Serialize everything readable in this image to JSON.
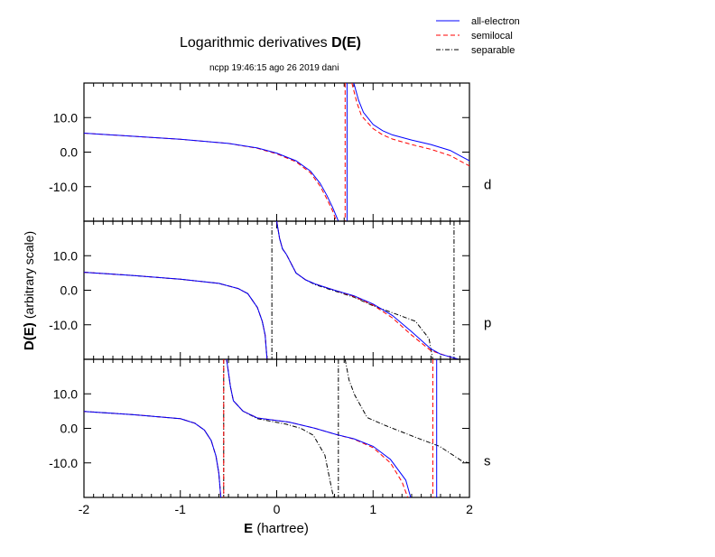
{
  "chart_data": {
    "type": "line",
    "title": "Logarithmic derivatives",
    "title_bold": "D(E)",
    "subtitle": "ncpp 19:46:15 ago 26 2019 dani",
    "xlabel_bold": "E",
    "xlabel": "(hartree)",
    "ylabel_bold": "D(E)",
    "ylabel": "(arbitrary scale)",
    "xlim": [
      -2,
      2
    ],
    "ylim": [
      -20,
      20
    ],
    "x_ticks": [
      "-2",
      "-1",
      "0",
      "1",
      "2"
    ],
    "y_ticks": [
      "10.0",
      "0.0",
      "-10.0"
    ],
    "legend": {
      "placement": "top-right",
      "entries": [
        {
          "key": "ae",
          "label": "all-electron",
          "color": "#0000ff",
          "style": "solid"
        },
        {
          "key": "sl",
          "label": "semilocal",
          "color": "#ff0000",
          "style": "dashed"
        },
        {
          "key": "sep",
          "label": "separable",
          "color": "#000000",
          "style": "dashdot"
        }
      ]
    },
    "panels": [
      {
        "label": "d",
        "series": {
          "ae": {
            "branches": [
              [
                [
                  -2,
                  5.5
                ],
                [
                  -1.5,
                  4.6
                ],
                [
                  -1,
                  3.7
                ],
                [
                  -0.5,
                  2.5
                ],
                [
                  -0.2,
                  1.2
                ],
                [
                  0,
                  -0.3
                ],
                [
                  0.2,
                  -2.5
                ],
                [
                  0.35,
                  -5.5
                ],
                [
                  0.45,
                  -9
                ],
                [
                  0.52,
                  -12.5
                ],
                [
                  0.58,
                  -16
                ],
                [
                  0.64,
                  -20
                ]
              ],
              [
                [
                  0.8,
                  20
                ],
                [
                  0.85,
                  15
                ],
                [
                  0.9,
                  11.5
                ],
                [
                  1.0,
                  8
                ],
                [
                  1.1,
                  6.2
                ],
                [
                  1.2,
                  5
                ],
                [
                  1.4,
                  3.5
                ],
                [
                  1.6,
                  2.2
                ],
                [
                  1.8,
                  0.5
                ],
                [
                  2.0,
                  -2.5
                ]
              ]
            ],
            "asymptotes": [
              0.73
            ]
          },
          "sl": {
            "branches": [
              [
                [
                  -2,
                  5.5
                ],
                [
                  -1.5,
                  4.6
                ],
                [
                  -1,
                  3.7
                ],
                [
                  -0.5,
                  2.5
                ],
                [
                  -0.2,
                  1.1
                ],
                [
                  0,
                  -0.5
                ],
                [
                  0.2,
                  -2.8
                ],
                [
                  0.35,
                  -6
                ],
                [
                  0.45,
                  -9.8
                ],
                [
                  0.52,
                  -13.5
                ],
                [
                  0.58,
                  -17
                ],
                [
                  0.62,
                  -20
                ]
              ],
              [
                [
                  0.78,
                  20
                ],
                [
                  0.83,
                  14.5
                ],
                [
                  0.88,
                  10.5
                ],
                [
                  1.0,
                  6.8
                ],
                [
                  1.1,
                  5
                ],
                [
                  1.2,
                  3.8
                ],
                [
                  1.4,
                  2.2
                ],
                [
                  1.6,
                  0.8
                ],
                [
                  1.8,
                  -1
                ],
                [
                  2.0,
                  -4
                ]
              ]
            ],
            "asymptotes": [
              0.71
            ]
          }
        }
      },
      {
        "label": "p",
        "series": {
          "ae": {
            "branches": [
              [
                [
                  -2,
                  5.2
                ],
                [
                  -1.5,
                  4.3
                ],
                [
                  -1,
                  3.2
                ],
                [
                  -0.6,
                  2
                ],
                [
                  -0.4,
                  0.5
                ],
                [
                  -0.3,
                  -1
                ],
                [
                  -0.2,
                  -5
                ],
                [
                  -0.15,
                  -9
                ],
                [
                  -0.12,
                  -13
                ],
                [
                  -0.1,
                  -20
                ]
              ],
              [
                [
                  0.0,
                  20
                ],
                [
                  0.03,
                  15
                ],
                [
                  0.06,
                  12
                ],
                [
                  0.1,
                  10.4
                ],
                [
                  0.2,
                  5
                ],
                [
                  0.3,
                  3
                ],
                [
                  0.4,
                  1.8
                ],
                [
                  0.6,
                  0
                ],
                [
                  0.8,
                  -1.6
                ],
                [
                  1.0,
                  -4
                ],
                [
                  1.2,
                  -7.3
                ],
                [
                  1.4,
                  -12
                ],
                [
                  1.6,
                  -17
                ],
                [
                  1.7,
                  -18.5
                ],
                [
                  1.89,
                  -20
                ]
              ]
            ],
            "asymptotes": []
          },
          "sl": {
            "branches": [
              [
                [
                  -2,
                  5.2
                ],
                [
                  -1.5,
                  4.3
                ],
                [
                  -1,
                  3.2
                ],
                [
                  -0.6,
                  2
                ],
                [
                  -0.4,
                  0.5
                ],
                [
                  -0.3,
                  -1
                ],
                [
                  -0.2,
                  -5
                ],
                [
                  -0.15,
                  -9
                ],
                [
                  -0.12,
                  -13
                ],
                [
                  -0.1,
                  -20
                ]
              ],
              [
                [
                  0.0,
                  20
                ],
                [
                  0.03,
                  15
                ],
                [
                  0.06,
                  12
                ],
                [
                  0.1,
                  10.4
                ],
                [
                  0.2,
                  5
                ],
                [
                  0.3,
                  3
                ],
                [
                  0.4,
                  1.8
                ],
                [
                  0.6,
                  0
                ],
                [
                  0.8,
                  -1.8
                ],
                [
                  1.0,
                  -4.3
                ],
                [
                  1.2,
                  -8
                ],
                [
                  1.4,
                  -13
                ],
                [
                  1.6,
                  -17.5
                ],
                [
                  1.87,
                  -20
                ]
              ]
            ],
            "asymptotes": []
          },
          "sep": {
            "branches": [
              [
                [
                  -2,
                  5.2
                ],
                [
                  -1.5,
                  4.3
                ],
                [
                  -1,
                  3.2
                ],
                [
                  -0.6,
                  2
                ],
                [
                  -0.4,
                  0.5
                ],
                [
                  -0.3,
                  -1
                ],
                [
                  -0.2,
                  -5
                ],
                [
                  -0.15,
                  -9
                ],
                [
                  -0.12,
                  -13
                ],
                [
                  -0.1,
                  -20
                ]
              ],
              [
                [
                  0.0,
                  20
                ],
                [
                  0.03,
                  15
                ],
                [
                  0.06,
                  12
                ],
                [
                  0.1,
                  10.4
                ],
                [
                  0.2,
                  5
                ],
                [
                  0.3,
                  3
                ],
                [
                  0.4,
                  1.6
                ],
                [
                  0.6,
                  -0.2
                ],
                [
                  0.8,
                  -2
                ],
                [
                  1.0,
                  -4.5
                ],
                [
                  1.2,
                  -6.5
                ],
                [
                  1.44,
                  -9
                ],
                [
                  1.58,
                  -14
                ],
                [
                  1.62,
                  -20
                ]
              ]
            ],
            "asymptotes": [
              -0.05,
              1.84
            ]
          }
        }
      },
      {
        "label": "s",
        "series": {
          "ae": {
            "branches": [
              [
                [
                  -2,
                  4.9
                ],
                [
                  -1.5,
                  4
                ],
                [
                  -1,
                  2.8
                ],
                [
                  -0.85,
                  1.5
                ],
                [
                  -0.75,
                  -0.5
                ],
                [
                  -0.68,
                  -3.5
                ],
                [
                  -0.63,
                  -8
                ],
                [
                  -0.6,
                  -13
                ],
                [
                  -0.58,
                  -20
                ]
              ],
              [
                [
                  -0.52,
                  20
                ],
                [
                  -0.48,
                  12
                ],
                [
                  -0.45,
                  8
                ],
                [
                  -0.35,
                  5
                ],
                [
                  -0.2,
                  3
                ],
                [
                  0.13,
                  1.8
                ],
                [
                  0.4,
                  0
                ],
                [
                  0.62,
                  -1.8
                ],
                [
                  0.8,
                  -3
                ],
                [
                  1.0,
                  -5.2
                ],
                [
                  1.18,
                  -9
                ],
                [
                  1.34,
                  -15
                ],
                [
                  1.39,
                  -20
                ]
              ]
            ],
            "asymptotes": [
              1.66
            ]
          },
          "sl": {
            "branches": [
              [
                [
                  -2,
                  4.9
                ],
                [
                  -1.5,
                  4
                ],
                [
                  -1,
                  2.8
                ],
                [
                  -0.85,
                  1.5
                ],
                [
                  -0.75,
                  -0.5
                ],
                [
                  -0.68,
                  -3.5
                ],
                [
                  -0.63,
                  -8
                ],
                [
                  -0.6,
                  -13
                ],
                [
                  -0.58,
                  -20
                ]
              ],
              [
                [
                  -0.52,
                  20
                ],
                [
                  -0.48,
                  12
                ],
                [
                  -0.45,
                  8
                ],
                [
                  -0.35,
                  5
                ],
                [
                  -0.2,
                  3
                ],
                [
                  0.13,
                  1.8
                ],
                [
                  0.4,
                  0
                ],
                [
                  0.62,
                  -1.8
                ],
                [
                  0.8,
                  -3.1
                ],
                [
                  1.0,
                  -5.6
                ],
                [
                  1.18,
                  -10
                ],
                [
                  1.3,
                  -15.5
                ],
                [
                  1.36,
                  -20
                ]
              ]
            ],
            "asymptotes": [
              -0.55,
              1.62
            ]
          },
          "sep": {
            "branches": [
              [
                [
                  -2,
                  4.9
                ],
                [
                  -1.5,
                  4
                ],
                [
                  -1,
                  2.8
                ],
                [
                  -0.85,
                  1.5
                ],
                [
                  -0.75,
                  -0.5
                ],
                [
                  -0.68,
                  -3.5
                ],
                [
                  -0.63,
                  -8
                ],
                [
                  -0.6,
                  -13
                ],
                [
                  -0.58,
                  -20
                ]
              ],
              [
                [
                  -0.52,
                  20
                ],
                [
                  -0.48,
                  12
                ],
                [
                  -0.45,
                  8
                ],
                [
                  -0.35,
                  5
                ],
                [
                  -0.2,
                  2.8
                ],
                [
                  0.1,
                  1.2
                ],
                [
                  0.25,
                  0
                ],
                [
                  0.38,
                  -2
                ],
                [
                  0.5,
                  -7.8
                ],
                [
                  0.57,
                  -17.4
                ],
                [
                  0.59,
                  -20
                ]
              ],
              [
                [
                  0.71,
                  20
                ],
                [
                  0.75,
                  14
                ],
                [
                  0.81,
                  9.6
                ],
                [
                  0.94,
                  3.1
                ],
                [
                  1.13,
                  0.8
                ],
                [
                  1.44,
                  -2.6
                ],
                [
                  1.69,
                  -5.2
                ],
                [
                  1.93,
                  -9.6
                ],
                [
                  2.0,
                  -10
                ]
              ]
            ],
            "asymptotes": [
              -0.55,
              0.64
            ]
          }
        }
      }
    ]
  }
}
